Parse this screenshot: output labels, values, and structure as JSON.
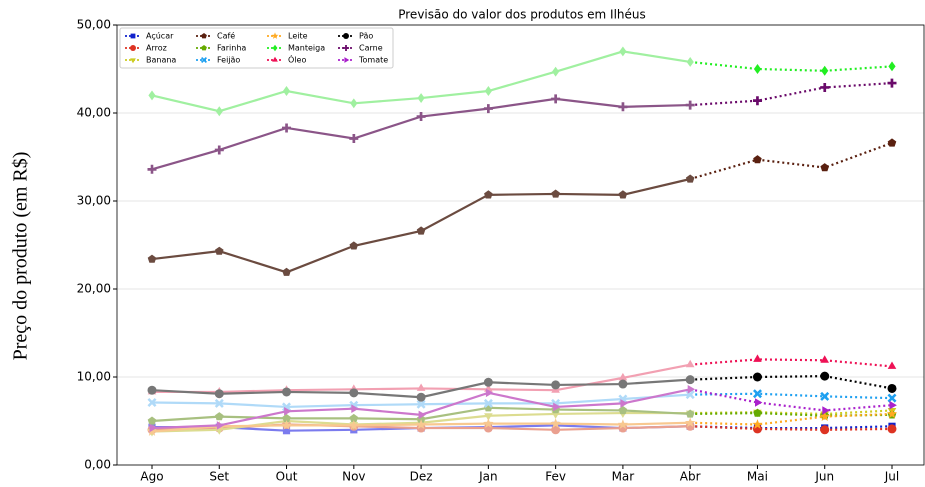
{
  "chart_data": {
    "type": "line",
    "title": "Previsão do valor dos produtos em Ilhéus",
    "y_label": "Preço do produto (em R$)",
    "categories": [
      "Ago",
      "Set",
      "Out",
      "Nov",
      "Dez",
      "Jan",
      "Fev",
      "Mar",
      "Abr",
      "Mai",
      "Jun",
      "Jul"
    ],
    "forecast_from": "Abr",
    "ylim": [
      0,
      50
    ],
    "yticks": [
      {
        "value": 0,
        "label": "0,00"
      },
      {
        "value": 10,
        "label": "10,00"
      },
      {
        "value": 20,
        "label": "20,00"
      },
      {
        "value": 30,
        "label": "30,00"
      },
      {
        "value": 40,
        "label": "40,00"
      },
      {
        "value": 50,
        "label": "50,00"
      }
    ],
    "grid": true,
    "legend": "upper left",
    "series": [
      {
        "name": "Açúcar",
        "color": "#1122cc",
        "history_color": "#7b7bee",
        "marker": "square",
        "values": [
          4.3,
          4.3,
          3.9,
          4.0,
          4.2,
          4.3,
          4.5,
          4.2,
          4.4,
          4.2,
          4.2,
          4.4
        ]
      },
      {
        "name": "Arroz",
        "color": "#dd3322",
        "history_color": "#eaa08f",
        "marker": "circle",
        "values": [
          4.0,
          4.2,
          4.6,
          4.4,
          4.2,
          4.2,
          4.0,
          4.2,
          4.4,
          4.1,
          4.0,
          4.1
        ]
      },
      {
        "name": "Banana",
        "color": "#cccc22",
        "history_color": "#dcdc90",
        "marker": "triangle-down",
        "values": [
          3.8,
          4.0,
          5.0,
          4.6,
          4.8,
          5.6,
          5.8,
          5.9,
          5.9,
          6.0,
          5.8,
          6.2
        ]
      },
      {
        "name": "Café",
        "color": "#5a2010",
        "history_color": "#6b4b40",
        "marker": "pentagon",
        "values": [
          23.4,
          24.3,
          21.9,
          24.9,
          26.6,
          30.7,
          30.8,
          30.7,
          32.5,
          34.7,
          33.8,
          36.6
        ]
      },
      {
        "name": "Farinha",
        "color": "#66aa00",
        "history_color": "#a8c080",
        "marker": "pentagon",
        "values": [
          5.0,
          5.5,
          5.3,
          5.3,
          5.2,
          6.5,
          6.3,
          6.2,
          5.8,
          5.9,
          5.6,
          5.7
        ]
      },
      {
        "name": "Feijão",
        "color": "#1ea0f0",
        "history_color": "#b0daf8",
        "marker": "x",
        "values": [
          7.1,
          7.0,
          6.6,
          6.8,
          6.9,
          7.0,
          7.0,
          7.5,
          8.0,
          8.1,
          7.8,
          7.6
        ]
      },
      {
        "name": "Leite",
        "color": "#ffaa22",
        "history_color": "#f8c890",
        "marker": "star",
        "values": [
          3.8,
          4.4,
          4.5,
          4.5,
          4.6,
          4.7,
          4.7,
          4.6,
          4.8,
          4.6,
          5.5,
          5.8
        ]
      },
      {
        "name": "Manteiga",
        "color": "#22ee22",
        "history_color": "#a0f0a0",
        "marker": "diamond",
        "values": [
          42.0,
          40.2,
          42.5,
          41.1,
          41.7,
          42.5,
          44.7,
          47.0,
          45.8,
          45.0,
          44.8,
          45.3
        ]
      },
      {
        "name": "Óleo",
        "color": "#ee1155",
        "history_color": "#f2a0b2",
        "marker": "triangle-up",
        "values": [
          8.3,
          8.3,
          8.5,
          8.6,
          8.7,
          8.6,
          8.5,
          9.9,
          11.4,
          12.0,
          11.9,
          11.2
        ]
      },
      {
        "name": "Pão",
        "color": "#000000",
        "history_color": "#777777",
        "marker": "circle",
        "values": [
          8.5,
          8.1,
          8.3,
          8.2,
          7.7,
          9.4,
          9.1,
          9.2,
          9.7,
          10.0,
          10.1,
          8.7
        ]
      },
      {
        "name": "Carne",
        "color": "#6a0a6a",
        "history_color": "#8b5588",
        "marker": "plus",
        "values": [
          33.6,
          35.8,
          38.3,
          37.1,
          39.6,
          40.5,
          41.6,
          40.7,
          40.9,
          41.4,
          42.9,
          43.4
        ]
      },
      {
        "name": "Tomate",
        "color": "#aa22cc",
        "history_color": "#cc77cc",
        "marker": "triangle-right",
        "values": [
          4.2,
          4.5,
          6.1,
          6.4,
          5.7,
          8.2,
          6.6,
          7.0,
          8.6,
          7.1,
          6.2,
          6.8
        ]
      }
    ]
  }
}
